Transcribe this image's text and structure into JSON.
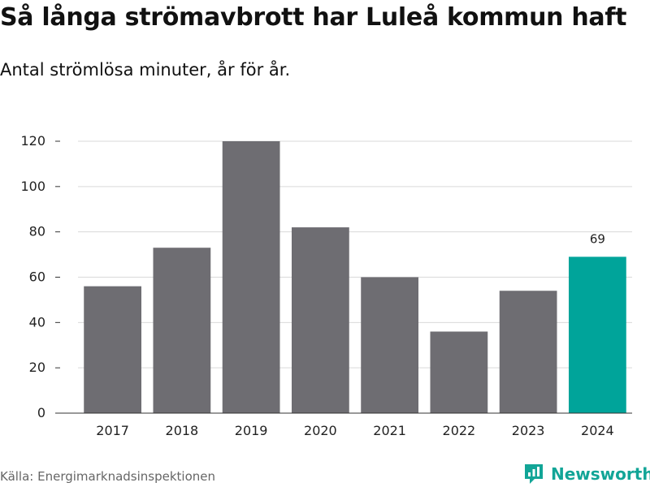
{
  "header": {
    "title": "Så långa strömavbrott har Luleå kommun haft",
    "subtitle": "Antal strömlösa minuter, år för år."
  },
  "footer": {
    "source": "Källa: Energimarknadsinspektionen",
    "brand": "Newsworthy"
  },
  "colors": {
    "bar": "#6e6d72",
    "highlight": "#00a49a",
    "grid": "#d9d9d9",
    "axis": "#333333",
    "brand": "#12a597"
  },
  "icons": {
    "logo": "newsworthy-logo-icon"
  },
  "chart_data": {
    "type": "bar",
    "title": "Så långa strömavbrott har Luleå kommun haft",
    "subtitle": "Antal strömlösa minuter, år för år.",
    "xlabel": "",
    "ylabel": "",
    "categories": [
      "2017",
      "2018",
      "2019",
      "2020",
      "2021",
      "2022",
      "2023",
      "2024"
    ],
    "values": [
      56,
      73,
      120,
      82,
      60,
      36,
      54,
      69
    ],
    "highlight_index": 7,
    "data_labels": [
      {
        "index": 7,
        "text": "69"
      }
    ],
    "ylim": [
      0,
      120
    ],
    "yticks": [
      0,
      20,
      40,
      60,
      80,
      100,
      120
    ],
    "grid": true,
    "legend": false
  }
}
